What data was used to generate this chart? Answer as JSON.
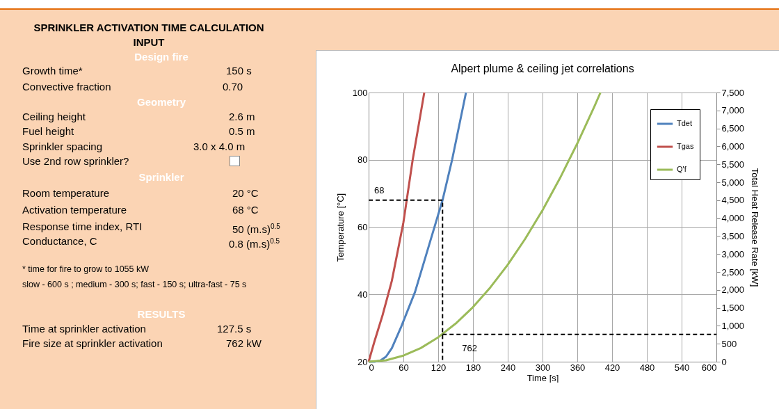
{
  "chart_data": [
    {
      "type": "other",
      "title": "SPRINKLER ACTIVATION TIME CALCULATION",
      "subtitle": "INPUT",
      "annotations": [
        "Design fire",
        "Growth time*",
        "150 s",
        "Convective fraction",
        "0.70",
        "Geometry",
        "Ceiling height",
        "2.6 m",
        "Fuel height",
        "0.5 m",
        "Sprinkler spacing",
        "3.0  x  4.0  m",
        "Use 2nd row sprinkler?",
        "Sprinkler",
        "Room temperature",
        "20 °C",
        "Activation temperature",
        "68 °C",
        "Response time index, RTI",
        "50 (m.s)$^{0.5}$",
        "Conductance, C",
        "0.8 (m.s)$^{0.5}$",
        "* time for fire to grow  to 1055 kW",
        "slow  - 600 s ; medium - 300 s; fast - 150 s; ultra-fast - 75 s",
        "RESULTS",
        "Time at sprinkler activation",
        "127.5 s",
        "Fire size at sprinkler activation",
        "762 kW"
      ]
    },
    {
      "type": "line",
      "title": "Alpert plume & ceiling jet correlations",
      "xlabel": "Time [s]",
      "ylabel": "Temperature [°C]",
      "y2label": "Total Heat Release Rate [kW]",
      "xlim": [
        0,
        600
      ],
      "xticks": [
        0,
        60,
        120,
        180,
        240,
        300,
        360,
        420,
        480,
        540,
        600
      ],
      "ylim": [
        20,
        100
      ],
      "yticks": [
        20,
        40,
        60,
        80,
        100
      ],
      "y2lim": [
        0,
        7500
      ],
      "y2ticks": [
        0,
        500,
        {
          "value": 1000,
          "label": "1,000"
        },
        {
          "value": 1500,
          "label": "1,500"
        },
        {
          "value": 2000,
          "label": "2,000"
        },
        {
          "value": 2500,
          "label": "2,500"
        },
        {
          "value": 3000,
          "label": "3,000"
        },
        {
          "value": 3500,
          "label": "3,500"
        },
        {
          "value": 4000,
          "label": "4,000"
        },
        {
          "value": 4500,
          "label": "4,500"
        },
        {
          "value": 5000,
          "label": "5,000"
        },
        {
          "value": 5500,
          "label": "5,500"
        },
        {
          "value": 6000,
          "label": "6,000"
        },
        {
          "value": 6500,
          "label": "6,500"
        },
        {
          "value": 7000,
          "label": "7,000"
        },
        {
          "value": 7500,
          "label": "7,500"
        }
      ],
      "grid": true,
      "legend": "top right",
      "line_style": "solid",
      "series": [
        {
          "name": "Tdet",
          "color": "#4f81bd",
          "x": [
            0,
            10,
            20,
            30,
            40,
            56,
            80,
            104,
            127.5,
            144,
            168
          ],
          "values": [
            20,
            20,
            20.3,
            21.5,
            24,
            30.3,
            40.7,
            54.5,
            68,
            80,
            100
          ]
        },
        {
          "name": "Tgas",
          "color": "#c0504d",
          "x": [
            0,
            10,
            24,
            40,
            60,
            76,
            96
          ],
          "values": [
            20,
            26,
            33.8,
            44,
            61.4,
            80,
            100
          ]
        },
        {
          "name": "Q'f",
          "color": "#9bbb59",
          "axis": "y2",
          "x": [
            0,
            30,
            60,
            90,
            120,
            150,
            180,
            210,
            240,
            270,
            300,
            330,
            360,
            390,
            400
          ],
          "values": [
            0,
            40,
            170,
            380,
            680,
            1060,
            1520,
            2070,
            2700,
            3420,
            4220,
            5110,
            6080,
            7130,
            7500
          ]
        },
        {
          "type": "line",
          "line_style": "dashed",
          "color": "#000000",
          "x": [
            0,
            127.5,
            127.5
          ],
          "values": [
            68,
            68,
            20
          ]
        },
        {
          "type": "line",
          "line_style": "dashed",
          "color": "#000000",
          "axis": "y2",
          "x": [
            127.5,
            600
          ],
          "values": [
            762,
            762
          ]
        }
      ],
      "annotations": [
        {
          "text": "68",
          "x": 0,
          "y": 68
        },
        {
          "text": "762",
          "x": 127.5,
          "y": 28.1
        }
      ]
    }
  ]
}
